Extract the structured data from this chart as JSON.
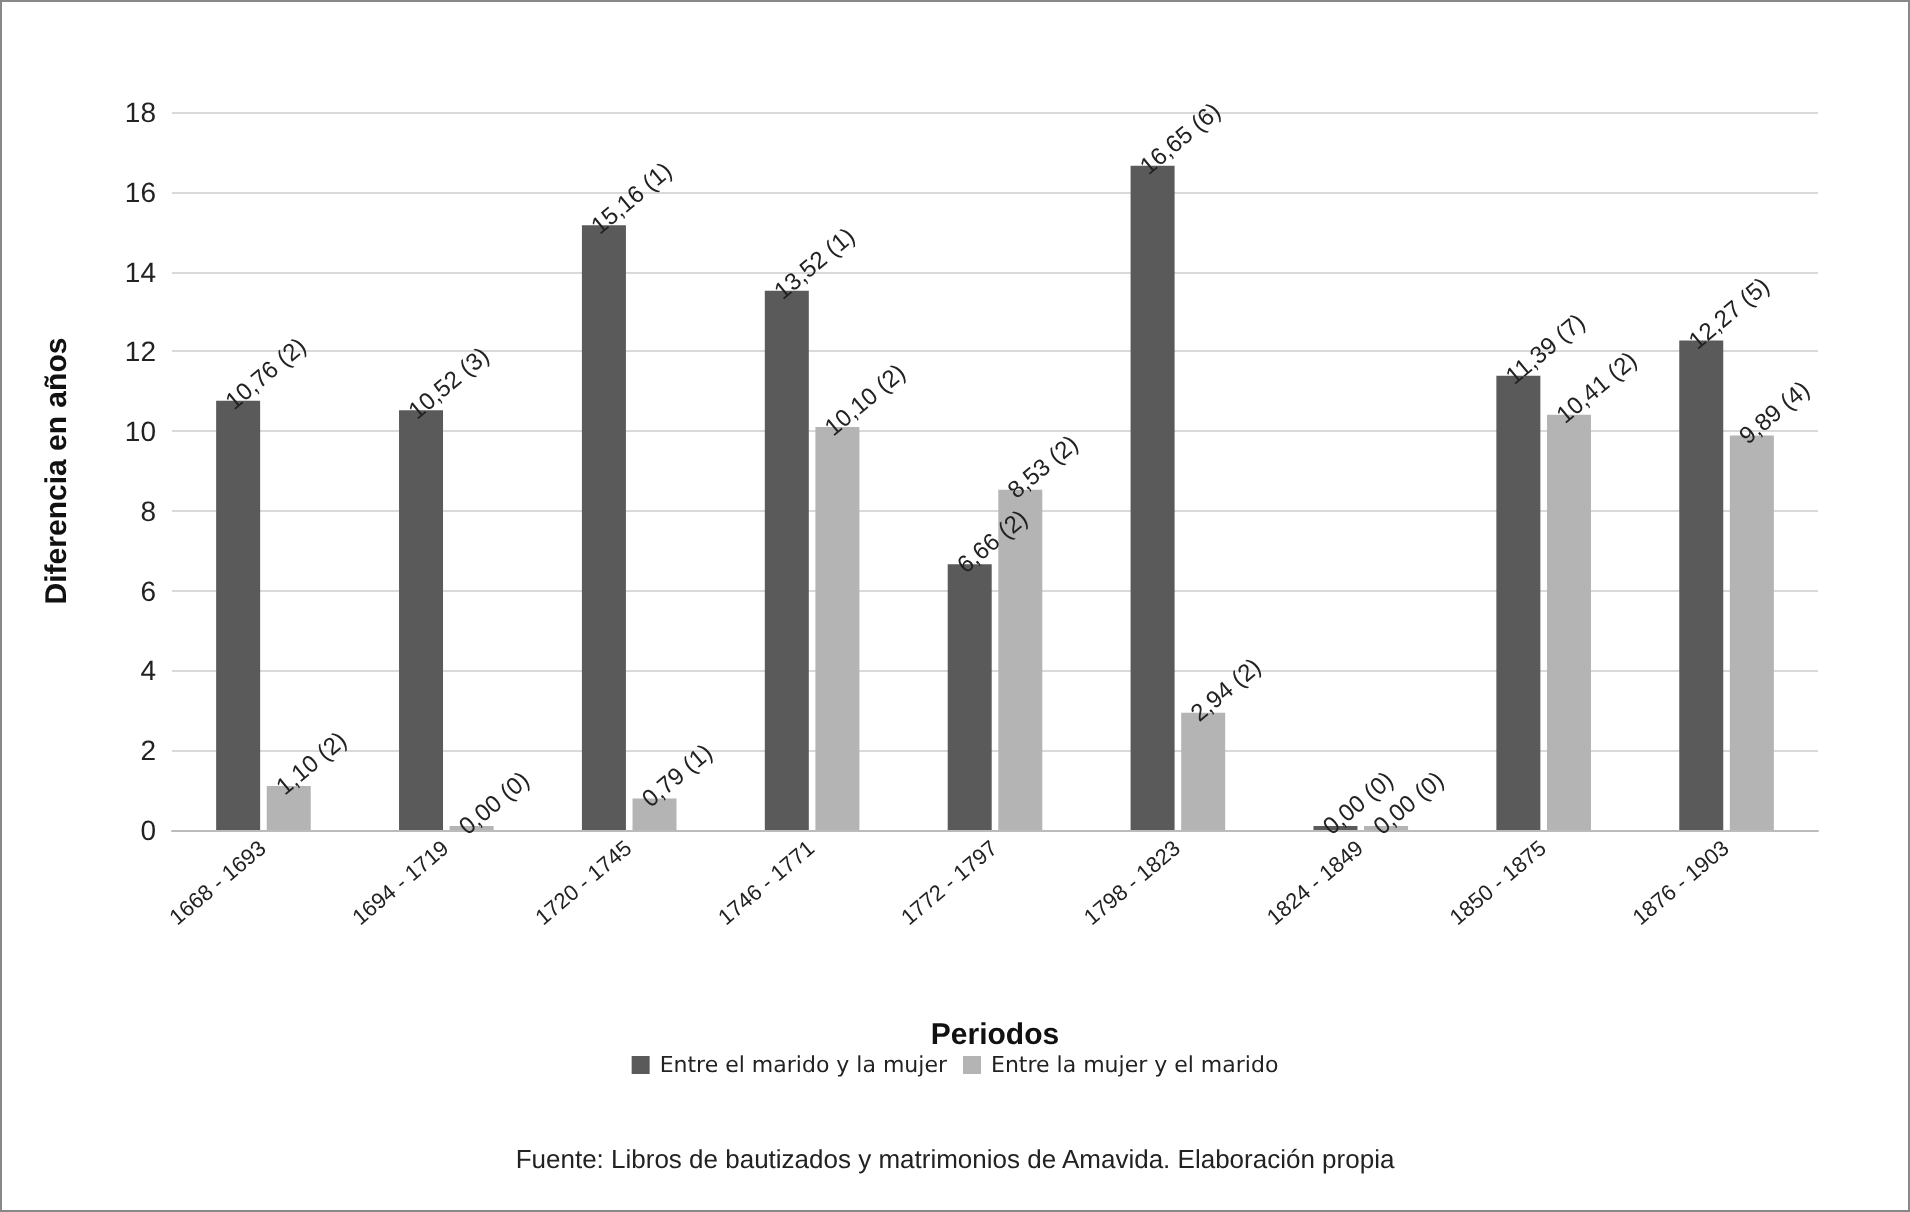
{
  "chart_data": {
    "type": "bar",
    "xlabel": "Periodos",
    "ylabel": "Diferencia en años",
    "categories": [
      "1668 - 1693",
      "1694 - 1719",
      "1720 - 1745",
      "1746 - 1771",
      "1772 - 1797",
      "1798 - 1823",
      "1824 - 1849",
      "1850 - 1875",
      "1876 - 1903"
    ],
    "series": [
      {
        "name": "Entre el marido y la mujer",
        "color": "#5a5a5a",
        "values": [
          10.76,
          10.52,
          15.16,
          13.52,
          6.66,
          16.65,
          0,
          11.39,
          12.27
        ],
        "value_labels": [
          "10,76 (2)",
          "10,52 (3)",
          "15,16 (1)",
          "13,52 (1)",
          "6,66 (2)",
          "16,65 (6)",
          "0,00 (0)",
          "11,39 (7)",
          "12,27 (5)"
        ]
      },
      {
        "name": "Entre la mujer y el marido",
        "color": "#b4b4b4",
        "values": [
          1.1,
          0,
          0.79,
          10.1,
          8.53,
          2.94,
          0,
          10.41,
          9.89
        ],
        "value_labels": [
          "1,10 (2)",
          "0,00 (0)",
          "0,79 (1)",
          "10,10 (2)",
          "8,53 (2)",
          "2,94 (2)",
          "0,00 (0)",
          "10,41 (2)",
          "9,89 (4)"
        ]
      }
    ],
    "ylim": [
      0,
      18
    ],
    "yticks": [
      0,
      2,
      4,
      6,
      8,
      10,
      12,
      14,
      16,
      18
    ],
    "grid": "y",
    "legend": "bottom",
    "annotations": [
      "Fuente: Libros de bautizados y matrimonios de Amavida. Elaboración propia"
    ]
  }
}
